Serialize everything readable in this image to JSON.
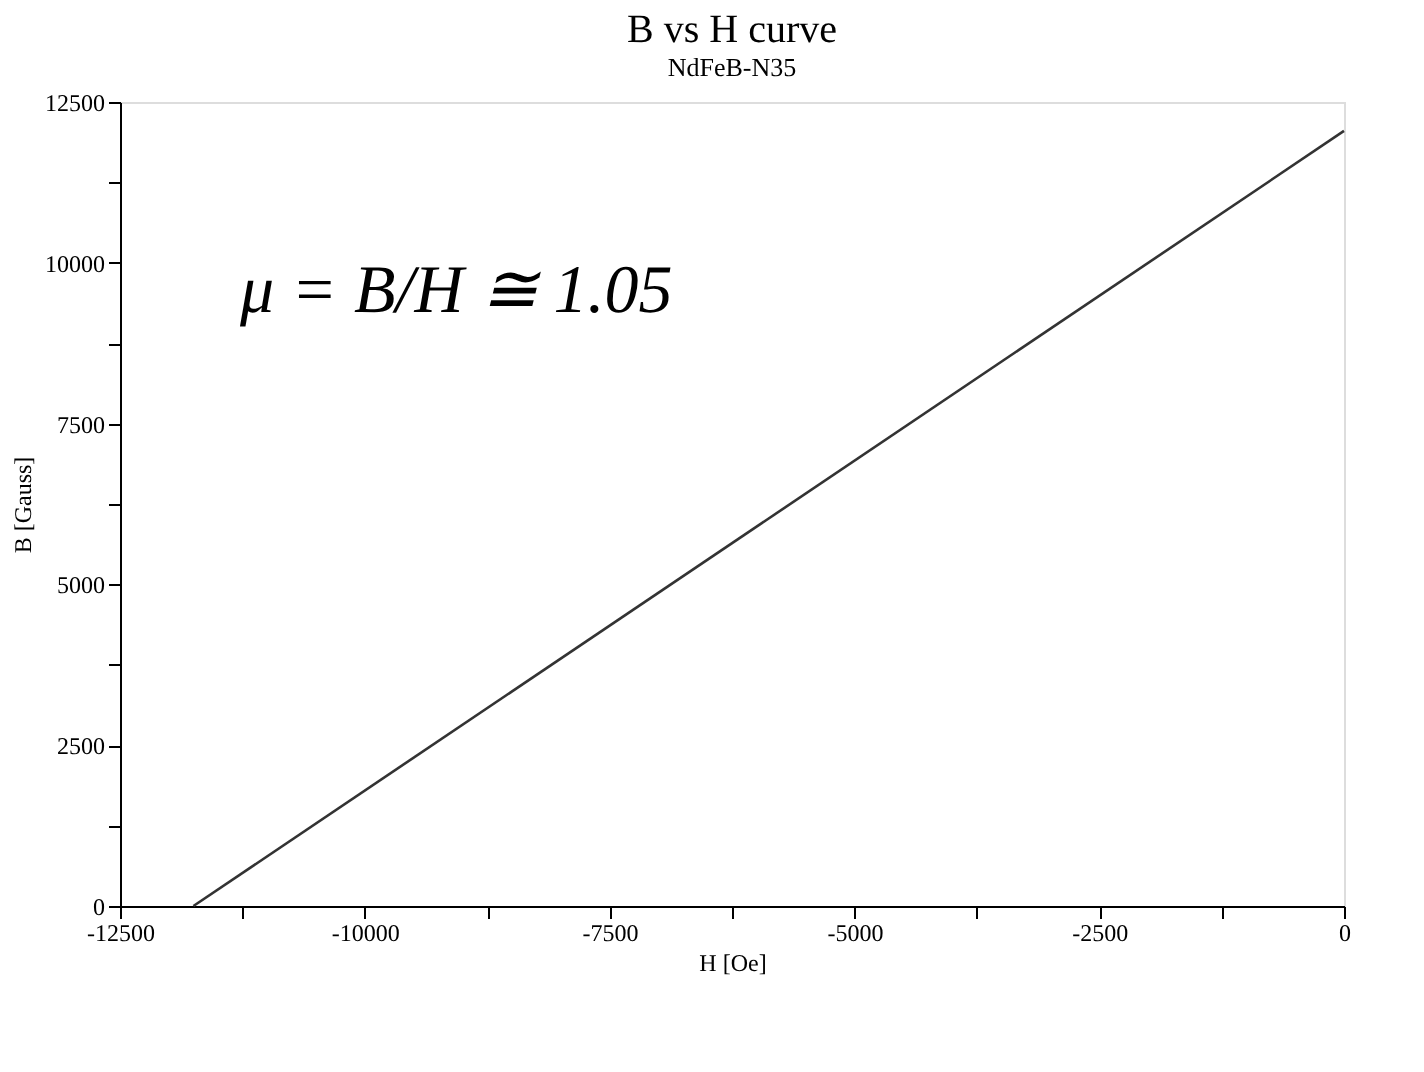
{
  "chart_data": {
    "type": "line",
    "title": "B vs H curve",
    "subtitle": "NdFeB-N35",
    "xlabel": "H [Oe]",
    "ylabel": "B [Gauss]",
    "x": [
      -11750,
      0
    ],
    "series": [
      {
        "color": "#333333",
        "values": [
          0,
          12050
        ]
      }
    ],
    "xlim": [
      -12500,
      0
    ],
    "xticks": [
      -12500,
      {
        "value": -11250,
        "label": null
      },
      -10000,
      {
        "value": -8750,
        "label": null
      },
      -7500,
      {
        "value": -6250,
        "label": null
      },
      -5000,
      {
        "value": -3750,
        "label": null
      },
      -2500,
      {
        "value": -1250,
        "label": null
      },
      0
    ],
    "ylim": [
      0,
      12500
    ],
    "yticks": [
      0,
      {
        "value": 1250,
        "label": null
      },
      2500,
      {
        "value": 3750,
        "label": null
      },
      5000,
      {
        "value": 6250,
        "label": null
      },
      7500,
      {
        "value": 8750,
        "label": null
      },
      10000,
      {
        "value": 11250,
        "label": null
      },
      12500
    ],
    "annotations": [
      "μ = B/H ≅ 1.05"
    ],
    "grid": false,
    "legend": false,
    "marker": "none",
    "line_style": "solid"
  }
}
